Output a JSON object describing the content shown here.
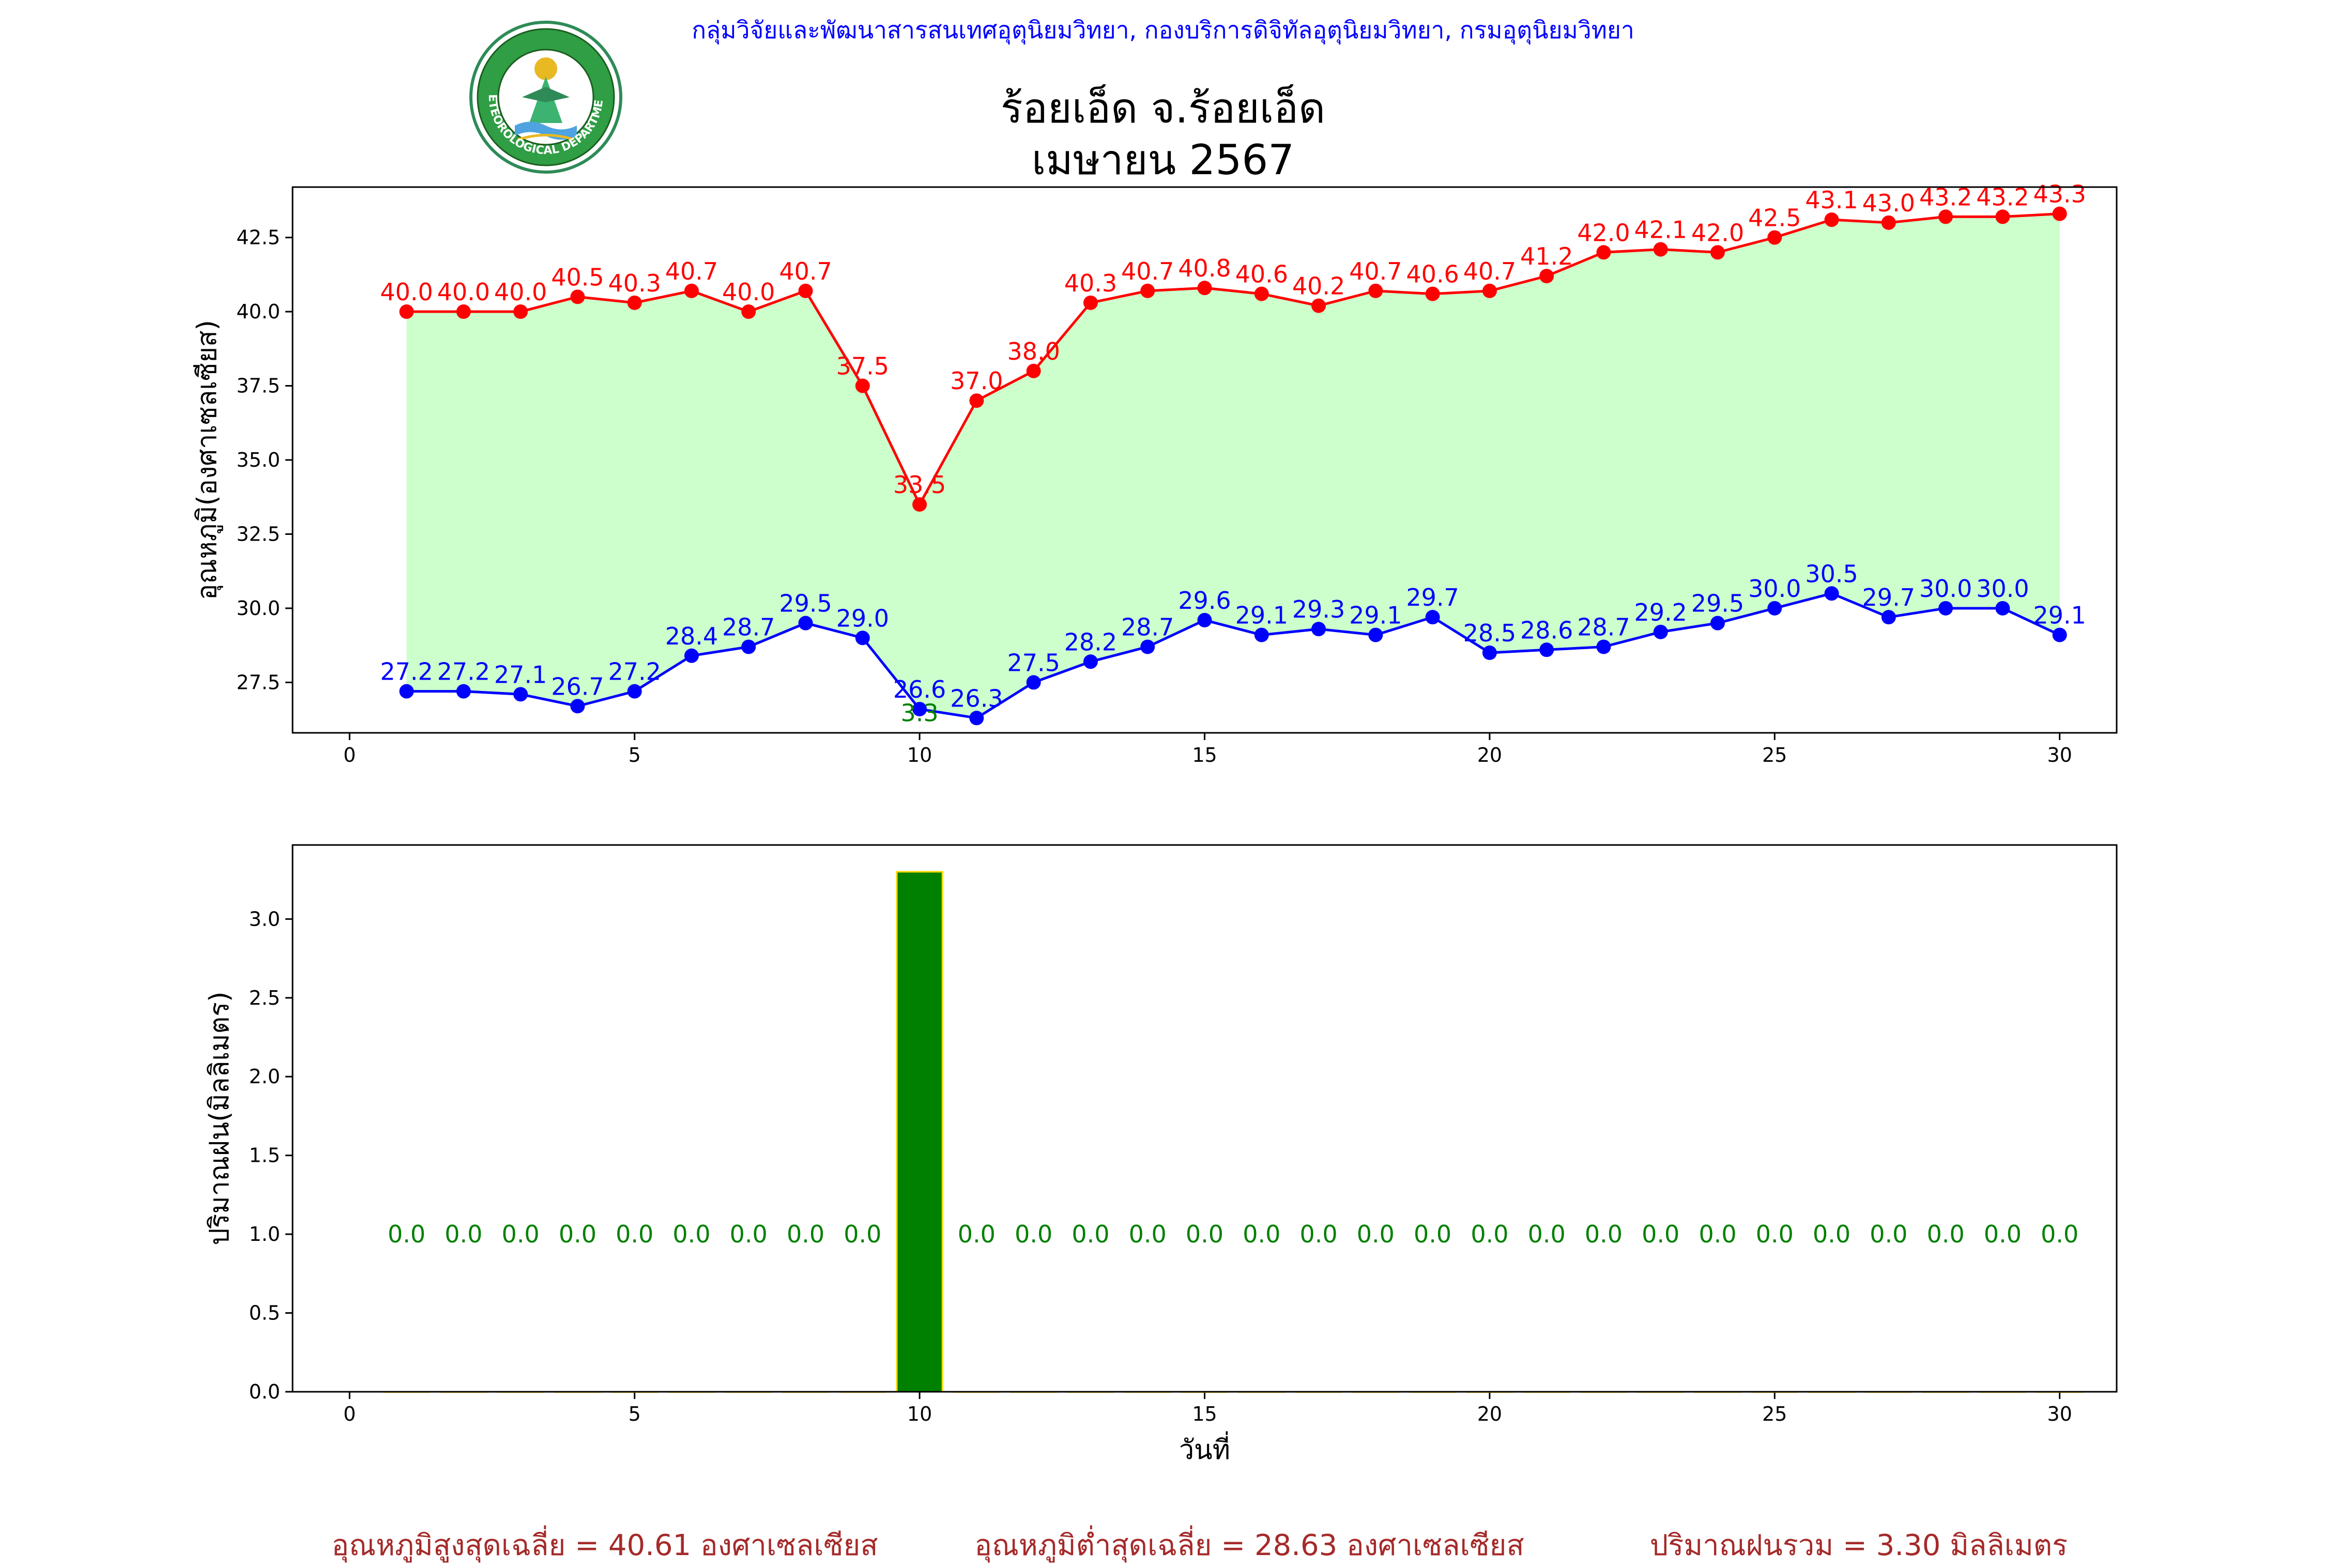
{
  "header": {
    "agency": "กลุ่มวิจัยและพัฒนาสารสนเทศอุตุนิยมวิทยา, กองบริการดิจิทัลอุตุนิยมวิทยา, กรมอุตุนิยมวิทยา",
    "title_line1": "ร้อยเอ็ด จ.ร้อยเอ็ด",
    "title_line2": "เมษายน 2567",
    "logo_text": "METEOROLOGICAL DEPARTMENT"
  },
  "colors": {
    "max_line": "#ff0000",
    "min_line": "#0000ff",
    "fill": "#ccffcc",
    "rain_bar": "#008000",
    "rain_bar_edge": "#ffd700",
    "rain_label": "#008000",
    "summary": "#a52a2a"
  },
  "chart_data": [
    {
      "type": "line",
      "ylabel": "อุณหภูมิ(องศาเซลเซียส)",
      "xlabel": "",
      "x": [
        1,
        2,
        3,
        4,
        5,
        6,
        7,
        8,
        9,
        10,
        11,
        12,
        13,
        14,
        15,
        16,
        17,
        18,
        19,
        20,
        21,
        22,
        23,
        24,
        25,
        26,
        27,
        28,
        29,
        30
      ],
      "series": [
        {
          "values": [
            40.0,
            40.0,
            40.0,
            40.5,
            40.3,
            40.7,
            40.0,
            40.7,
            37.5,
            33.5,
            37.0,
            38.0,
            40.3,
            40.7,
            40.8,
            40.6,
            40.2,
            40.7,
            40.6,
            40.7,
            41.2,
            42.0,
            42.1,
            42.0,
            42.5,
            43.1,
            43.0,
            43.2,
            43.2,
            43.3
          ]
        },
        {
          "values": [
            27.2,
            27.2,
            27.1,
            26.7,
            27.2,
            28.4,
            28.7,
            29.5,
            29.0,
            26.6,
            26.3,
            27.5,
            28.2,
            28.7,
            29.6,
            29.1,
            29.3,
            29.1,
            29.7,
            28.5,
            28.6,
            28.7,
            29.2,
            29.5,
            30.0,
            30.5,
            29.7,
            30.0,
            30.0,
            29.1
          ]
        }
      ],
      "annotations": [
        {
          "x": 10,
          "y": 26.3,
          "text": "3.3"
        }
      ],
      "xlim": [
        -1,
        31
      ],
      "ylim": [
        25.8,
        44.2
      ],
      "xticks": [
        0,
        5,
        10,
        15,
        20,
        25,
        30
      ],
      "yticks": [
        27.5,
        30.0,
        32.5,
        35.0,
        37.5,
        40.0,
        42.5
      ],
      "grid": false
    },
    {
      "type": "bar",
      "ylabel": "ปริมาณฝน(มิลลิเมตร)",
      "xlabel": "วันที่",
      "x": [
        1,
        2,
        3,
        4,
        5,
        6,
        7,
        8,
        9,
        10,
        11,
        12,
        13,
        14,
        15,
        16,
        17,
        18,
        19,
        20,
        21,
        22,
        23,
        24,
        25,
        26,
        27,
        28,
        29,
        30
      ],
      "values": [
        0.0,
        0.0,
        0.0,
        0.0,
        0.0,
        0.0,
        0.0,
        0.0,
        0.0,
        3.3,
        0.0,
        0.0,
        0.0,
        0.0,
        0.0,
        0.0,
        0.0,
        0.0,
        0.0,
        0.0,
        0.0,
        0.0,
        0.0,
        0.0,
        0.0,
        0.0,
        0.0,
        0.0,
        0.0,
        0.0
      ],
      "xlim": [
        -1,
        31
      ],
      "ylim": [
        0,
        3.47
      ],
      "xticks": [
        0,
        5,
        10,
        15,
        20,
        25,
        30
      ],
      "yticks": [
        0.0,
        0.5,
        1.0,
        1.5,
        2.0,
        2.5,
        3.0
      ],
      "label_y": 1.0,
      "grid": false
    }
  ],
  "summary": {
    "avg_max": "อุณหภูมิสูงสุดเฉลี่ย = 40.61 องศาเซลเซียส",
    "avg_min": "อุณหภูมิต่ำสุดเฉลี่ย = 28.63 องศาเซลเซียส",
    "total_rain": "ปริมาณฝนรวม = 3.30 มิลลิเมตร"
  }
}
